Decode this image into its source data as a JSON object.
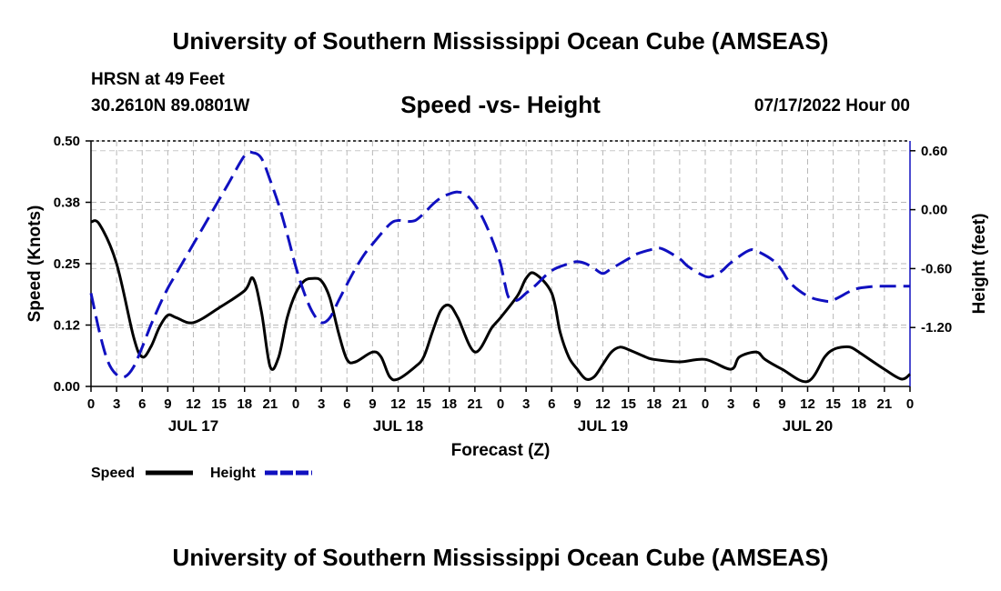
{
  "header": {
    "title": "University of Southern Mississippi Ocean Cube (AMSEAS)",
    "station": "HRSN at 49 Feet",
    "coordinates": "30.2610N  89.0801W",
    "date_hour": "07/17/2022 Hour 00"
  },
  "footer": {
    "title": "University of Southern Mississippi Ocean Cube (AMSEAS)"
  },
  "chart_data": {
    "type": "line",
    "title": "Speed -vs- Height",
    "xlabel": "Forecast (Z)",
    "ylabel": "Speed (Knots)",
    "y2label": "Height (feet)",
    "x_range": [
      0,
      96
    ],
    "ylim": [
      0,
      0.5
    ],
    "y2lim": [
      -1.8,
      0.7
    ],
    "x_ticks": [
      0,
      3,
      6,
      9,
      12,
      15,
      18,
      21,
      24,
      27,
      30,
      33,
      36,
      39,
      42,
      45,
      48,
      51,
      54,
      57,
      60,
      63,
      66,
      69,
      72,
      75,
      78,
      81,
      84,
      87,
      90,
      93,
      96
    ],
    "x_tick_labels": [
      "0",
      "3",
      "6",
      "9",
      "12",
      "15",
      "18",
      "21",
      "0",
      "3",
      "6",
      "9",
      "12",
      "15",
      "18",
      "21",
      "0",
      "3",
      "6",
      "9",
      "12",
      "15",
      "18",
      "21",
      "0",
      "3",
      "6",
      "9",
      "12",
      "15",
      "18",
      "21",
      "0"
    ],
    "day_labels": [
      {
        "x": 12,
        "label": "JUL 17"
      },
      {
        "x": 36,
        "label": "JUL 18"
      },
      {
        "x": 60,
        "label": "JUL 19"
      },
      {
        "x": 84,
        "label": "JUL 20"
      }
    ],
    "y_ticks": [
      0.0,
      0.125,
      0.25,
      0.375,
      0.5
    ],
    "y_tick_labels": [
      "0.00",
      "0.12",
      "0.25",
      "0.38",
      "0.50"
    ],
    "y2_ticks": [
      0.6,
      0.0,
      -0.6,
      -1.2
    ],
    "y2_tick_labels": [
      "0.60",
      "0.00",
      "-0.60",
      "-1.20"
    ],
    "grid": true,
    "legend": [
      {
        "name": "Speed",
        "color": "#000000",
        "style": "solid"
      },
      {
        "name": "Height",
        "color": "#1010c0",
        "style": "dashed"
      }
    ],
    "series": [
      {
        "name": "Speed",
        "axis": "left",
        "color": "#000000",
        "x": [
          0,
          1,
          3,
          5,
          6,
          7,
          8,
          9,
          10,
          12,
          15,
          18,
          19,
          20,
          21,
          22,
          23,
          24,
          25,
          26,
          27,
          28,
          29,
          30,
          31,
          33,
          34,
          35,
          36,
          38,
          39,
          40,
          41,
          42,
          43,
          45,
          47,
          48,
          50,
          51,
          52,
          54,
          55,
          56,
          57,
          58,
          59,
          60,
          61,
          62,
          63,
          65,
          66,
          69,
          72,
          75,
          76,
          78,
          79,
          81,
          84,
          86,
          87,
          88,
          89,
          90,
          93,
          95,
          96
        ],
        "values": [
          0.335,
          0.33,
          0.25,
          0.1,
          0.06,
          0.08,
          0.12,
          0.145,
          0.14,
          0.13,
          0.16,
          0.195,
          0.22,
          0.15,
          0.04,
          0.06,
          0.14,
          0.19,
          0.215,
          0.22,
          0.215,
          0.18,
          0.11,
          0.055,
          0.05,
          0.07,
          0.06,
          0.02,
          0.015,
          0.04,
          0.06,
          0.11,
          0.155,
          0.165,
          0.14,
          0.07,
          0.12,
          0.14,
          0.185,
          0.22,
          0.23,
          0.19,
          0.11,
          0.06,
          0.035,
          0.015,
          0.02,
          0.045,
          0.07,
          0.08,
          0.075,
          0.06,
          0.055,
          0.05,
          0.055,
          0.035,
          0.06,
          0.07,
          0.055,
          0.035,
          0.01,
          0.06,
          0.075,
          0.08,
          0.08,
          0.07,
          0.035,
          0.015,
          0.025
        ]
      },
      {
        "name": "Height",
        "axis": "right",
        "color": "#1010c0",
        "x": [
          0,
          1,
          2,
          3,
          4,
          5,
          6,
          7,
          8,
          9,
          10,
          12,
          14,
          16,
          18,
          19,
          20,
          21,
          22,
          23,
          24,
          25,
          26,
          27,
          28,
          29,
          30,
          31,
          32,
          33,
          35,
          36,
          37,
          38,
          39,
          40,
          41,
          42,
          43,
          44,
          45,
          46,
          47,
          48,
          48.5,
          49,
          50,
          51,
          52,
          54,
          56,
          57,
          58,
          59,
          60,
          61,
          63,
          64,
          66,
          67,
          69,
          70,
          72,
          73,
          74,
          75,
          77,
          78,
          80,
          81,
          82,
          84,
          86,
          87,
          89,
          90,
          92,
          93,
          96
        ],
        "values": [
          -0.85,
          -1.25,
          -1.55,
          -1.68,
          -1.7,
          -1.6,
          -1.4,
          -1.18,
          -0.98,
          -0.8,
          -0.65,
          -0.35,
          -0.05,
          0.25,
          0.55,
          0.58,
          0.52,
          0.3,
          0.05,
          -0.25,
          -0.58,
          -0.85,
          -1.05,
          -1.15,
          -1.1,
          -0.93,
          -0.76,
          -0.6,
          -0.46,
          -0.35,
          -0.15,
          -0.11,
          -0.12,
          -0.11,
          -0.04,
          0.05,
          0.12,
          0.16,
          0.18,
          0.15,
          0.05,
          -0.1,
          -0.3,
          -0.55,
          -0.75,
          -0.9,
          -0.92,
          -0.85,
          -0.78,
          -0.62,
          -0.55,
          -0.53,
          -0.55,
          -0.6,
          -0.65,
          -0.6,
          -0.5,
          -0.45,
          -0.4,
          -0.4,
          -0.5,
          -0.58,
          -0.68,
          -0.67,
          -0.62,
          -0.54,
          -0.42,
          -0.42,
          -0.52,
          -0.62,
          -0.75,
          -0.88,
          -0.93,
          -0.92,
          -0.83,
          -0.8,
          -0.78,
          -0.78,
          -0.78
        ]
      }
    ]
  }
}
